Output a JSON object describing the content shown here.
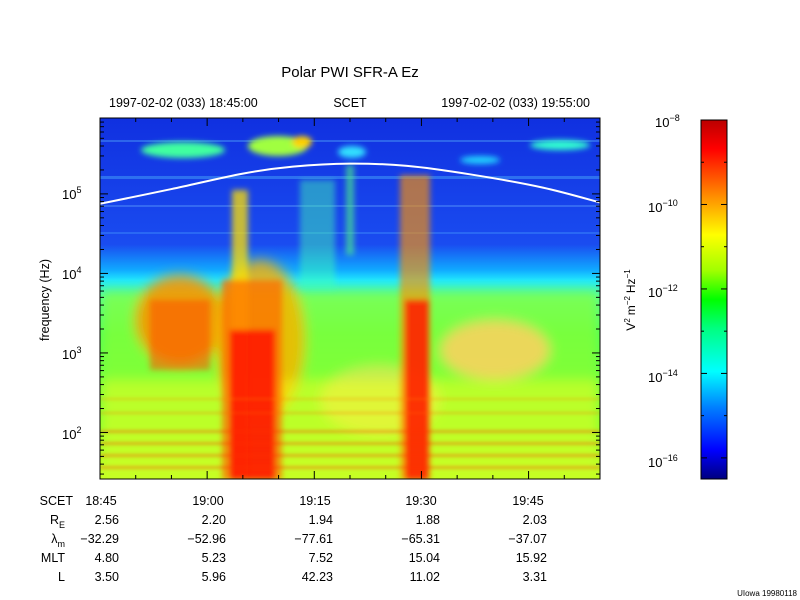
{
  "chart_data": {
    "type": "heatmap",
    "title": "Polar PWI SFR-A Ez",
    "header": {
      "start": "1997-02-02 (033) 18:45:00",
      "middle": "SCET",
      "end": "1997-02-02 (033) 19:55:00"
    },
    "ylabel": "frequency (Hz)",
    "yscale": "log",
    "ylim": [
      26,
      900000
    ],
    "y_tick_labels": [
      {
        "base": "10",
        "exp": "2",
        "value": 100
      },
      {
        "base": "10",
        "exp": "3",
        "value": 1000
      },
      {
        "base": "10",
        "exp": "4",
        "value": 10000
      },
      {
        "base": "10",
        "exp": "5",
        "value": 100000
      }
    ],
    "x_range_minutes": [
      0,
      70
    ],
    "x_tick_minutes": [
      0,
      15,
      30,
      45,
      60
    ],
    "colorbar": {
      "label": "V² m⁻² Hz⁻¹",
      "label_parts": {
        "v": "V",
        "v_exp": "2",
        "m": "m",
        "m_exp": "−2",
        "hz": "Hz",
        "hz_exp": "−1"
      },
      "range_log10": [
        -16.5,
        -8
      ],
      "ticks": [
        {
          "base": "10",
          "exp": "−8",
          "value": -8
        },
        {
          "base": "10",
          "exp": "−10",
          "value": -10
        },
        {
          "base": "10",
          "exp": "−12",
          "value": -12
        },
        {
          "base": "10",
          "exp": "−14",
          "value": -14
        },
        {
          "base": "10",
          "exp": "−16",
          "value": -16
        }
      ],
      "colors": [
        "#00007f",
        "#0000ff",
        "#0080ff",
        "#00ffff",
        "#00ff80",
        "#00ff00",
        "#a0ff00",
        "#ffff00",
        "#ff8000",
        "#ff0000",
        "#bb0000"
      ]
    },
    "overlay_curve": {
      "name": "",
      "color": "#ffffff",
      "points": [
        [
          0,
          75000
        ],
        [
          10,
          115000
        ],
        [
          20,
          180000
        ],
        [
          27,
          220000
        ],
        [
          35,
          240000
        ],
        [
          43,
          225000
        ],
        [
          52,
          175000
        ],
        [
          62,
          120000
        ],
        [
          70,
          78000
        ]
      ]
    },
    "ephemeris": {
      "rows": [
        {
          "label": "SCET",
          "sub": "",
          "values": [
            "18:45",
            "19:00",
            "19:15",
            "19:30",
            "19:45"
          ]
        },
        {
          "label": "R",
          "sub": "E",
          "values": [
            "2.56",
            "2.20",
            "1.94",
            "1.88",
            "2.03"
          ]
        },
        {
          "label": "λ",
          "sub": "m",
          "values": [
            "−32.29",
            "−52.96",
            "−77.61",
            "−65.31",
            "−37.07"
          ]
        },
        {
          "label": "MLT",
          "sub": "",
          "values": [
            "4.80",
            "5.23",
            "7.52",
            "15.04",
            "15.92"
          ]
        },
        {
          "label": "L",
          "sub": "",
          "values": [
            "3.50",
            "5.96",
            "42.23",
            "11.02",
            "3.31"
          ]
        }
      ]
    },
    "credit": "UIowa 19980118"
  }
}
